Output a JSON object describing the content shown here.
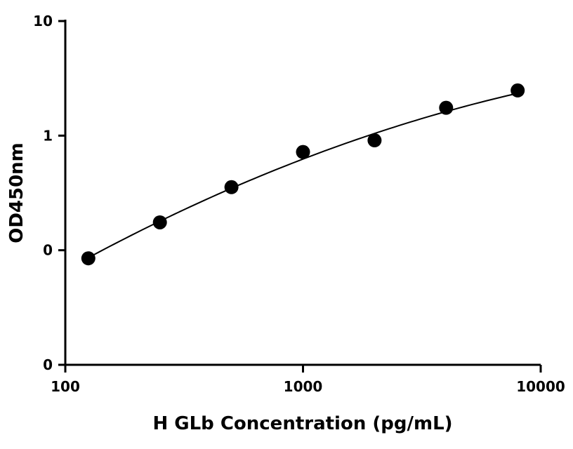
{
  "chart_data": {
    "type": "scatter",
    "title": "",
    "xlabel": "H GLb Concentration (pg/mL)",
    "ylabel": "OD450nm",
    "x_scale": "log",
    "y_scale": "log",
    "xlim": [
      100,
      10000
    ],
    "ylim": [
      0.01,
      10
    ],
    "x_tick_values": [
      100,
      1000,
      10000
    ],
    "x_tick_labels": [
      "100",
      "1000",
      "10000"
    ],
    "y_tick_values": [
      0.01,
      0.1,
      1,
      10
    ],
    "y_tick_labels": [
      "0",
      "0",
      "1",
      "10"
    ],
    "grid": false,
    "legend": "none",
    "series": [
      {
        "x": [
          125,
          250,
          500,
          1000,
          2000,
          4000,
          8000
        ],
        "y": [
          0.085,
          0.175,
          0.355,
          0.72,
          0.91,
          1.75,
          2.48
        ]
      }
    ],
    "fit_curve": {
      "x": [
        125,
        250,
        500,
        1000,
        2000,
        4000,
        8000
      ],
      "y": [
        0.085,
        0.18,
        0.355,
        0.63,
        1.03,
        1.57,
        2.4
      ]
    },
    "colors": {
      "marker": "#000000",
      "line": "#000000",
      "axis": "#000000"
    }
  }
}
